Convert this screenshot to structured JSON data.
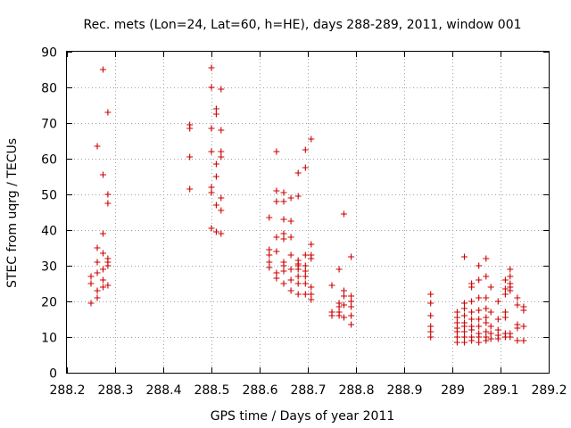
{
  "chart_data": {
    "type": "scatter",
    "title": "Rec. mets (Lon=24, Lat=60, h=HE), days 288-289, 2011, window 001",
    "xlabel": "GPS time / Days of year 2011",
    "ylabel": "STEC from uqrg / TECUs",
    "xlim": [
      288.2,
      289.2
    ],
    "ylim": [
      0,
      90
    ],
    "xticks": [
      288.2,
      288.3,
      288.4,
      288.5,
      288.6,
      288.7,
      288.8,
      288.9,
      289.0,
      289.1,
      289.2
    ],
    "xtick_labels": [
      "288.2",
      "288.3",
      "288.4",
      "288.5",
      "288.6",
      "288.7",
      "288.8",
      "288.9",
      "289",
      "289.1",
      "289.2"
    ],
    "yticks": [
      0,
      10,
      20,
      30,
      40,
      50,
      60,
      70,
      80,
      90
    ],
    "ytick_labels": [
      "0",
      "10",
      "20",
      "30",
      "40",
      "50",
      "60",
      "70",
      "80",
      "90"
    ],
    "grid": true,
    "marker": "+",
    "color": "#cc0000",
    "series": [
      {
        "name": "STEC",
        "points": [
          [
            288.25,
            19.5
          ],
          [
            288.25,
            25
          ],
          [
            288.25,
            27
          ],
          [
            288.263,
            21
          ],
          [
            288.263,
            23
          ],
          [
            288.263,
            28
          ],
          [
            288.263,
            31
          ],
          [
            288.263,
            35
          ],
          [
            288.263,
            63.5
          ],
          [
            288.275,
            24
          ],
          [
            288.275,
            26
          ],
          [
            288.275,
            29
          ],
          [
            288.275,
            33.5
          ],
          [
            288.275,
            39
          ],
          [
            288.275,
            55.5
          ],
          [
            288.275,
            85
          ],
          [
            288.285,
            24.5
          ],
          [
            288.285,
            30
          ],
          [
            288.285,
            31
          ],
          [
            288.285,
            32
          ],
          [
            288.285,
            47.5
          ],
          [
            288.285,
            50
          ],
          [
            288.285,
            73
          ],
          [
            288.455,
            51.5
          ],
          [
            288.455,
            60.5
          ],
          [
            288.455,
            68.5
          ],
          [
            288.455,
            69.5
          ],
          [
            288.5,
            40.5
          ],
          [
            288.5,
            50.5
          ],
          [
            288.5,
            52
          ],
          [
            288.5,
            62
          ],
          [
            288.5,
            68.5
          ],
          [
            288.5,
            80
          ],
          [
            288.5,
            85.5
          ],
          [
            288.51,
            39.5
          ],
          [
            288.51,
            47
          ],
          [
            288.51,
            55
          ],
          [
            288.51,
            58.5
          ],
          [
            288.51,
            72.5
          ],
          [
            288.51,
            74
          ],
          [
            288.52,
            39
          ],
          [
            288.52,
            45.5
          ],
          [
            288.52,
            49
          ],
          [
            288.52,
            60.5
          ],
          [
            288.52,
            62
          ],
          [
            288.52,
            68
          ],
          [
            288.52,
            79.5
          ],
          [
            288.62,
            29.5
          ],
          [
            288.62,
            31
          ],
          [
            288.62,
            33
          ],
          [
            288.62,
            34.5
          ],
          [
            288.62,
            43.5
          ],
          [
            288.635,
            26.5
          ],
          [
            288.635,
            28
          ],
          [
            288.635,
            34
          ],
          [
            288.635,
            38
          ],
          [
            288.635,
            48
          ],
          [
            288.635,
            51
          ],
          [
            288.635,
            62
          ],
          [
            288.65,
            25
          ],
          [
            288.65,
            28.5
          ],
          [
            288.65,
            30
          ],
          [
            288.65,
            31
          ],
          [
            288.65,
            37.5
          ],
          [
            288.65,
            39
          ],
          [
            288.65,
            43
          ],
          [
            288.65,
            48
          ],
          [
            288.65,
            50.5
          ],
          [
            288.665,
            23
          ],
          [
            288.665,
            26
          ],
          [
            288.665,
            29
          ],
          [
            288.665,
            33
          ],
          [
            288.665,
            38
          ],
          [
            288.665,
            42.5
          ],
          [
            288.665,
            49
          ],
          [
            288.68,
            22
          ],
          [
            288.68,
            25
          ],
          [
            288.68,
            27
          ],
          [
            288.68,
            29
          ],
          [
            288.68,
            30
          ],
          [
            288.68,
            30.5
          ],
          [
            288.68,
            31.5
          ],
          [
            288.68,
            49.5
          ],
          [
            288.68,
            56
          ],
          [
            288.695,
            22
          ],
          [
            288.695,
            25
          ],
          [
            288.695,
            27
          ],
          [
            288.695,
            28.5
          ],
          [
            288.695,
            30
          ],
          [
            288.695,
            33
          ],
          [
            288.695,
            57.5
          ],
          [
            288.695,
            62.5
          ],
          [
            288.707,
            20.5
          ],
          [
            288.707,
            22
          ],
          [
            288.707,
            24
          ],
          [
            288.707,
            32
          ],
          [
            288.707,
            33
          ],
          [
            288.707,
            36
          ],
          [
            288.707,
            65.5
          ],
          [
            288.75,
            16
          ],
          [
            288.75,
            17
          ],
          [
            288.75,
            24.5
          ],
          [
            288.765,
            16
          ],
          [
            288.765,
            17
          ],
          [
            288.765,
            18.5
          ],
          [
            288.765,
            19.5
          ],
          [
            288.765,
            29
          ],
          [
            288.775,
            15.5
          ],
          [
            288.775,
            19
          ],
          [
            288.775,
            21.5
          ],
          [
            288.775,
            23
          ],
          [
            288.775,
            44.5
          ],
          [
            288.79,
            13.5
          ],
          [
            288.79,
            16
          ],
          [
            288.79,
            18.5
          ],
          [
            288.79,
            20
          ],
          [
            288.79,
            21.5
          ],
          [
            288.79,
            32.5
          ],
          [
            288.955,
            10
          ],
          [
            288.955,
            11.5
          ],
          [
            288.955,
            13
          ],
          [
            288.955,
            16
          ],
          [
            288.955,
            19.5
          ],
          [
            288.955,
            22
          ],
          [
            289.01,
            8.5
          ],
          [
            289.01,
            10
          ],
          [
            289.01,
            11.5
          ],
          [
            289.01,
            12.5
          ],
          [
            289.01,
            14
          ],
          [
            289.01,
            15.5
          ],
          [
            289.01,
            17
          ],
          [
            289.025,
            8.5
          ],
          [
            289.025,
            10
          ],
          [
            289.025,
            11.5
          ],
          [
            289.025,
            13
          ],
          [
            289.025,
            14
          ],
          [
            289.025,
            16
          ],
          [
            289.025,
            18
          ],
          [
            289.025,
            19.5
          ],
          [
            289.025,
            32.5
          ],
          [
            289.04,
            9
          ],
          [
            289.04,
            10
          ],
          [
            289.04,
            12
          ],
          [
            289.04,
            13
          ],
          [
            289.04,
            15
          ],
          [
            289.04,
            17
          ],
          [
            289.04,
            20
          ],
          [
            289.04,
            24
          ],
          [
            289.04,
            25
          ],
          [
            289.055,
            8.5
          ],
          [
            289.055,
            10
          ],
          [
            289.055,
            11
          ],
          [
            289.055,
            13
          ],
          [
            289.055,
            15
          ],
          [
            289.055,
            17.5
          ],
          [
            289.055,
            21
          ],
          [
            289.055,
            26
          ],
          [
            289.055,
            30
          ],
          [
            289.07,
            9
          ],
          [
            289.07,
            10
          ],
          [
            289.07,
            11.5
          ],
          [
            289.07,
            14
          ],
          [
            289.07,
            15.5
          ],
          [
            289.07,
            18
          ],
          [
            289.07,
            21
          ],
          [
            289.07,
            27
          ],
          [
            289.07,
            32
          ],
          [
            289.08,
            9.5
          ],
          [
            289.08,
            11
          ],
          [
            289.08,
            13
          ],
          [
            289.08,
            17
          ],
          [
            289.08,
            24
          ],
          [
            289.095,
            9.5
          ],
          [
            289.095,
            10.5
          ],
          [
            289.095,
            12
          ],
          [
            289.095,
            15
          ],
          [
            289.095,
            20
          ],
          [
            289.11,
            10
          ],
          [
            289.11,
            11
          ],
          [
            289.11,
            15.5
          ],
          [
            289.11,
            17
          ],
          [
            289.11,
            22
          ],
          [
            289.11,
            23.5
          ],
          [
            289.11,
            26
          ],
          [
            289.12,
            10
          ],
          [
            289.12,
            11
          ],
          [
            289.12,
            23
          ],
          [
            289.12,
            24
          ],
          [
            289.12,
            25
          ],
          [
            289.12,
            27
          ],
          [
            289.12,
            29
          ],
          [
            289.135,
            9
          ],
          [
            289.135,
            12.5
          ],
          [
            289.135,
            13.5
          ],
          [
            289.135,
            19
          ],
          [
            289.135,
            21
          ],
          [
            289.148,
            9
          ],
          [
            289.148,
            13
          ],
          [
            289.148,
            17.5
          ],
          [
            289.148,
            18.5
          ]
        ]
      }
    ]
  }
}
